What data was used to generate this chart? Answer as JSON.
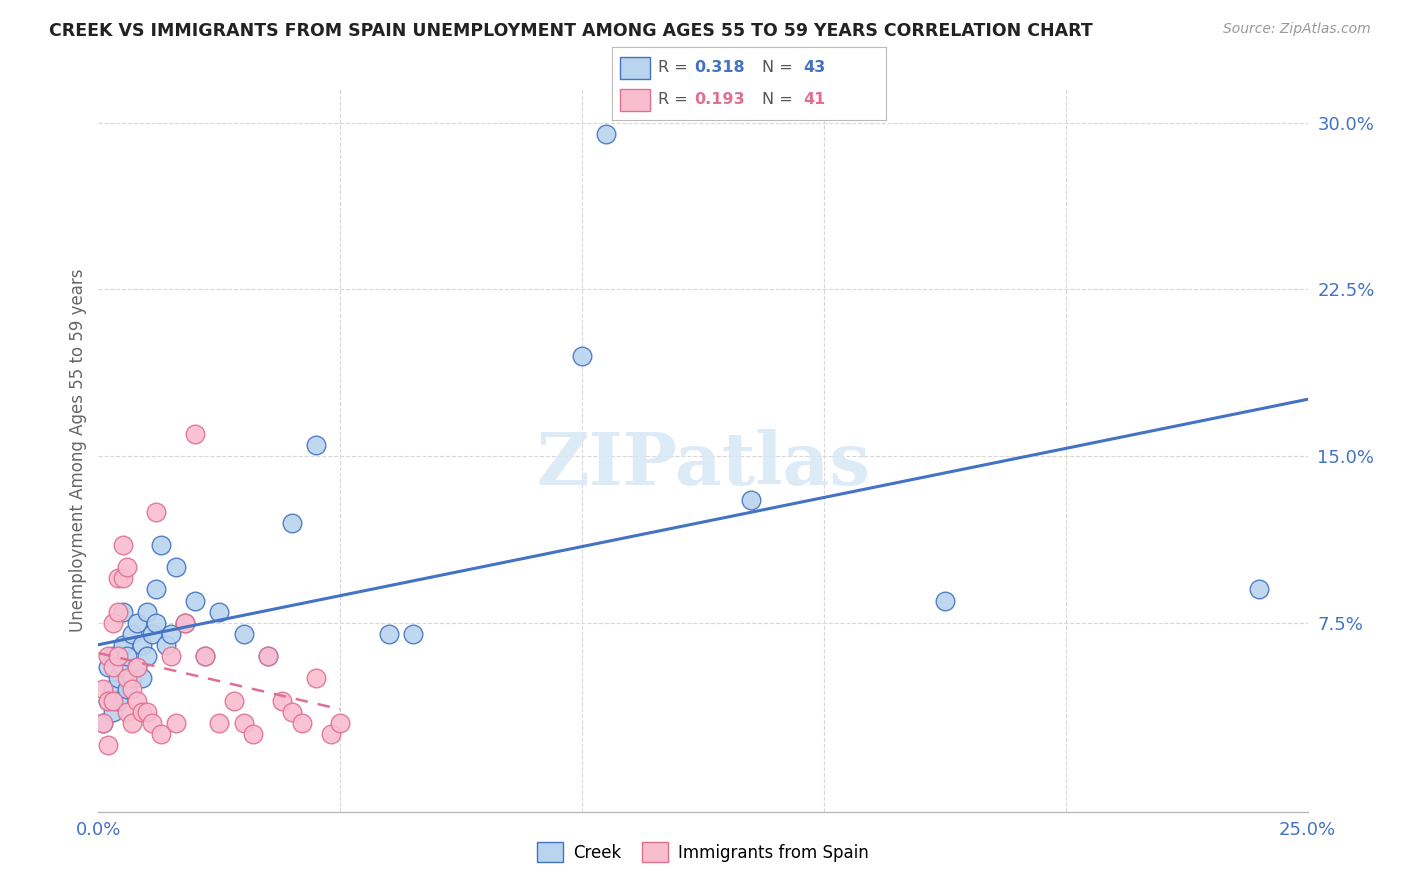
{
  "title": "CREEK VS IMMIGRANTS FROM SPAIN UNEMPLOYMENT AMONG AGES 55 TO 59 YEARS CORRELATION CHART",
  "source": "Source: ZipAtlas.com",
  "ylabel": "Unemployment Among Ages 55 to 59 years",
  "xlim": [
    0.0,
    0.25
  ],
  "ylim": [
    -0.01,
    0.315
  ],
  "blue_R": 0.318,
  "blue_N": 43,
  "pink_R": 0.193,
  "pink_N": 41,
  "blue_color": "#b8d4ee",
  "pink_color": "#f9bdd0",
  "blue_line_color": "#4472c4",
  "pink_line_color": "#e07090",
  "legend_blue_label": "Creek",
  "legend_pink_label": "Immigrants from Spain",
  "blue_scatter_x": [
    0.001,
    0.002,
    0.002,
    0.003,
    0.003,
    0.003,
    0.004,
    0.004,
    0.005,
    0.005,
    0.005,
    0.006,
    0.006,
    0.007,
    0.007,
    0.008,
    0.008,
    0.009,
    0.009,
    0.01,
    0.01,
    0.011,
    0.012,
    0.012,
    0.013,
    0.014,
    0.015,
    0.016,
    0.018,
    0.02,
    0.022,
    0.025,
    0.03,
    0.035,
    0.04,
    0.045,
    0.06,
    0.065,
    0.1,
    0.105,
    0.135,
    0.175,
    0.24
  ],
  "blue_scatter_y": [
    0.03,
    0.04,
    0.055,
    0.035,
    0.045,
    0.06,
    0.04,
    0.05,
    0.055,
    0.065,
    0.08,
    0.045,
    0.06,
    0.05,
    0.07,
    0.055,
    0.075,
    0.05,
    0.065,
    0.06,
    0.08,
    0.07,
    0.075,
    0.09,
    0.11,
    0.065,
    0.07,
    0.1,
    0.075,
    0.085,
    0.06,
    0.08,
    0.07,
    0.06,
    0.12,
    0.155,
    0.07,
    0.07,
    0.195,
    0.295,
    0.13,
    0.085,
    0.09
  ],
  "pink_scatter_x": [
    0.001,
    0.001,
    0.002,
    0.002,
    0.002,
    0.003,
    0.003,
    0.003,
    0.004,
    0.004,
    0.004,
    0.005,
    0.005,
    0.006,
    0.006,
    0.006,
    0.007,
    0.007,
    0.008,
    0.008,
    0.009,
    0.01,
    0.011,
    0.012,
    0.013,
    0.015,
    0.016,
    0.018,
    0.02,
    0.022,
    0.025,
    0.028,
    0.03,
    0.032,
    0.035,
    0.038,
    0.04,
    0.042,
    0.045,
    0.048,
    0.05
  ],
  "pink_scatter_y": [
    0.045,
    0.03,
    0.06,
    0.04,
    0.02,
    0.075,
    0.055,
    0.04,
    0.095,
    0.08,
    0.06,
    0.11,
    0.095,
    0.035,
    0.05,
    0.1,
    0.03,
    0.045,
    0.04,
    0.055,
    0.035,
    0.035,
    0.03,
    0.125,
    0.025,
    0.06,
    0.03,
    0.075,
    0.16,
    0.06,
    0.03,
    0.04,
    0.03,
    0.025,
    0.06,
    0.04,
    0.035,
    0.03,
    0.05,
    0.025,
    0.03
  ],
  "background_color": "#ffffff",
  "grid_color": "#d8d8d8",
  "watermark": "ZIPatlas"
}
